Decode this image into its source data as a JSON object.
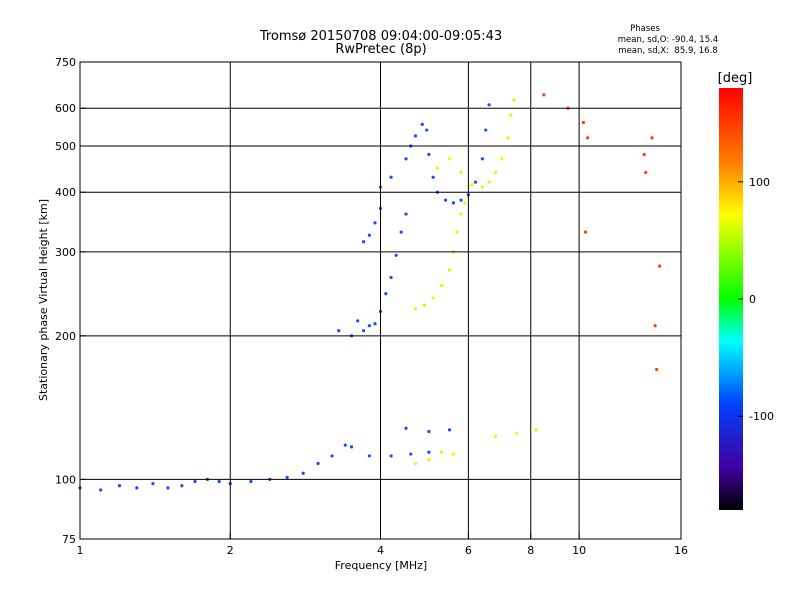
{
  "chart_data": {
    "type": "scatter",
    "title": "Tromsø 20150708 09:04:00-09:05:43",
    "subtitle": "RwPretec (8p)",
    "xlabel": "Frequency [MHz]",
    "ylabel": "Stationary phase Virtual Height [km]",
    "x_scale": "log2",
    "y_scale": "log",
    "xlim": [
      1,
      16
    ],
    "ylim": [
      75,
      750
    ],
    "x_ticks": [
      1,
      2,
      4,
      6,
      8,
      10,
      16
    ],
    "y_ticks": [
      75,
      100,
      200,
      300,
      400,
      500,
      600,
      750
    ],
    "grid": true,
    "stats": {
      "heading": "Phases",
      "line_o": "mean, sd,O: -90.4, 15.4",
      "line_x": "mean, sd,X:  85.9, 16.8"
    },
    "colorbar": {
      "label": "[deg]",
      "range": [
        -180,
        180
      ],
      "ticks": [
        100,
        0,
        -100
      ],
      "colors": [
        "#ff0000",
        "#ff8000",
        "#ffff00",
        "#00ff00",
        "#00ffff",
        "#0040ff",
        "#4000a0",
        "#000000"
      ]
    },
    "series": [
      {
        "phase": "O",
        "color": "#1a4bff",
        "points": [
          [
            1.0,
            96
          ],
          [
            1.1,
            95
          ],
          [
            1.2,
            97
          ],
          [
            1.3,
            96
          ],
          [
            1.4,
            98
          ],
          [
            1.5,
            96
          ],
          [
            1.6,
            97
          ],
          [
            1.7,
            99
          ],
          [
            1.8,
            100
          ],
          [
            1.9,
            99
          ],
          [
            2.0,
            98
          ],
          [
            2.2,
            99
          ],
          [
            2.4,
            100
          ],
          [
            2.6,
            101
          ],
          [
            2.8,
            103
          ],
          [
            3.0,
            108
          ],
          [
            3.2,
            112
          ],
          [
            3.4,
            118
          ],
          [
            3.5,
            117
          ],
          [
            3.8,
            112
          ],
          [
            4.2,
            112
          ],
          [
            4.6,
            113
          ],
          [
            5.0,
            114
          ],
          [
            3.3,
            205
          ],
          [
            3.5,
            200
          ],
          [
            3.6,
            215
          ],
          [
            3.7,
            205
          ],
          [
            3.8,
            210
          ],
          [
            3.9,
            212
          ],
          [
            4.0,
            225
          ],
          [
            4.1,
            245
          ],
          [
            4.2,
            265
          ],
          [
            4.3,
            295
          ],
          [
            4.4,
            330
          ],
          [
            4.5,
            360
          ],
          [
            4.0,
            410
          ],
          [
            4.2,
            430
          ],
          [
            4.5,
            470
          ],
          [
            4.6,
            500
          ],
          [
            4.7,
            525
          ],
          [
            4.85,
            555
          ],
          [
            4.95,
            540
          ],
          [
            5.0,
            480
          ],
          [
            5.1,
            430
          ],
          [
            5.2,
            400
          ],
          [
            5.4,
            385
          ],
          [
            5.6,
            380
          ],
          [
            5.8,
            385
          ],
          [
            6.0,
            395
          ],
          [
            6.2,
            420
          ],
          [
            6.4,
            470
          ],
          [
            6.5,
            540
          ],
          [
            6.6,
            610
          ],
          [
            4.5,
            128
          ],
          [
            5.0,
            126
          ],
          [
            5.5,
            127
          ],
          [
            3.7,
            315
          ],
          [
            3.8,
            325
          ],
          [
            3.9,
            345
          ],
          [
            4.0,
            370
          ]
        ]
      },
      {
        "phase": "X",
        "color": "#f0f000",
        "points": [
          [
            4.7,
            228
          ],
          [
            4.9,
            232
          ],
          [
            5.1,
            240
          ],
          [
            5.3,
            255
          ],
          [
            5.5,
            275
          ],
          [
            5.6,
            300
          ],
          [
            5.7,
            330
          ],
          [
            5.8,
            360
          ],
          [
            5.9,
            380
          ],
          [
            5.2,
            450
          ],
          [
            5.5,
            470
          ],
          [
            5.8,
            440
          ],
          [
            6.1,
            415
          ],
          [
            6.4,
            410
          ],
          [
            6.6,
            420
          ],
          [
            6.8,
            440
          ],
          [
            7.0,
            470
          ],
          [
            7.2,
            520
          ],
          [
            7.3,
            580
          ],
          [
            7.4,
            625
          ],
          [
            4.7,
            108
          ],
          [
            5.0,
            110
          ],
          [
            5.3,
            114
          ],
          [
            5.6,
            113
          ],
          [
            6.8,
            123
          ],
          [
            7.5,
            125
          ],
          [
            8.2,
            127
          ]
        ]
      },
      {
        "phase": "scattered",
        "color": "#ff4000",
        "points": [
          [
            10.2,
            560
          ],
          [
            10.4,
            520
          ],
          [
            13.5,
            480
          ],
          [
            13.6,
            440
          ],
          [
            14.0,
            520
          ],
          [
            14.2,
            210
          ],
          [
            14.5,
            280
          ],
          [
            14.3,
            170
          ],
          [
            10.3,
            330
          ],
          [
            9.5,
            600
          ],
          [
            8.5,
            640
          ]
        ]
      }
    ]
  }
}
